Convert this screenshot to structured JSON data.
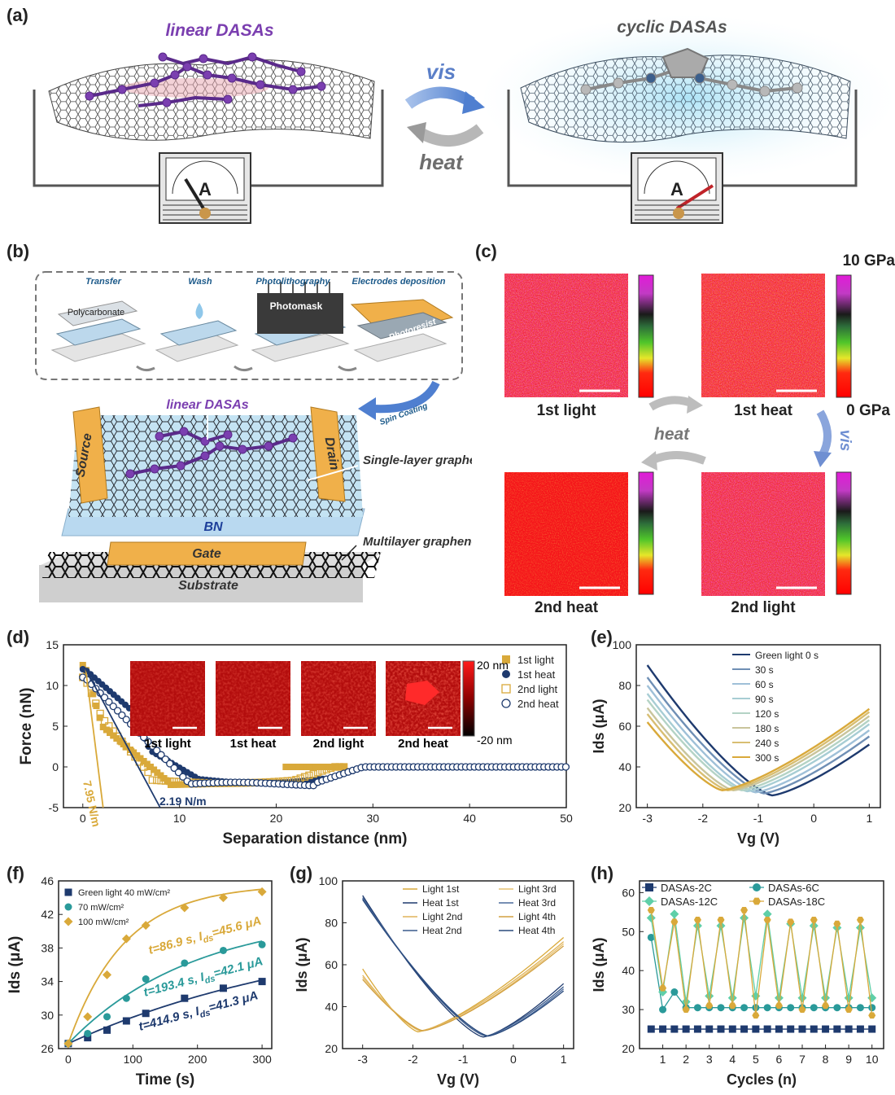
{
  "panel_labels": {
    "a": "(a)",
    "b": "(b)",
    "c": "(c)",
    "d": "(d)",
    "e": "(e)",
    "f": "(f)",
    "g": "(g)",
    "h": "(h)"
  },
  "panel_a": {
    "left_title": "linear DASAs",
    "right_title": "cyclic DASAs",
    "forward": "vis",
    "reverse": "heat",
    "meter_label": "A",
    "colors": {
      "linear": "#7b3fb0",
      "vis": "#5b86cc",
      "heat": "#888888"
    }
  },
  "panel_b": {
    "steps": [
      "Transfer",
      "Wash",
      "Photolithography",
      "Electrodes deposition"
    ],
    "polycarbonate": "Polycarbonate",
    "photomask": "Photomask",
    "photoresist": "Photoresist",
    "spin_coating": "Spin Coating",
    "molecule": "linear DASAs",
    "source": "Source",
    "drain": "Drain",
    "single_layer": "Single-layer graphene",
    "bn": "BN",
    "gate": "Gate",
    "multilayer": "Multilayer graphene",
    "substrate": "Substrate"
  },
  "panel_c": {
    "maps": [
      "1st light",
      "1st heat",
      "2nd heat",
      "2nd light"
    ],
    "scale_max": "10 GPa",
    "scale_min": "0 GPa",
    "arrow_heat": "heat",
    "arrow_vis": "vis"
  },
  "chart_data": [
    {
      "id": "d",
      "type": "scatter",
      "xlabel": "Separation distance (nm)",
      "ylabel": "Force (nN)",
      "xlim": [
        -2,
        50
      ],
      "ylim": [
        -5,
        15
      ],
      "xticks": [
        0,
        10,
        20,
        30,
        40,
        50
      ],
      "yticks": [
        -5,
        0,
        5,
        10,
        15
      ],
      "series": [
        {
          "name": "1st light",
          "color": "#d9a93a",
          "marker": "square-filled"
        },
        {
          "name": "1st heat",
          "color": "#1e3a6e",
          "marker": "circle-filled"
        },
        {
          "name": "2nd light",
          "color": "#d9a93a",
          "marker": "square-open"
        },
        {
          "name": "2nd heat",
          "color": "#1e3a6e",
          "marker": "circle-open"
        }
      ],
      "annotations": [
        "7.95 N/m",
        "2.19 N/m"
      ],
      "inset_labels": [
        "1st light",
        "1st heat",
        "2nd light",
        "2nd heat"
      ],
      "inset_scale": [
        "20 nm",
        "-20 nm"
      ]
    },
    {
      "id": "e",
      "type": "line",
      "xlabel": "Vg (V)",
      "ylabel": "Ids (μA)",
      "xlim": [
        -3.2,
        1.2
      ],
      "ylim": [
        20,
        100
      ],
      "xticks": [
        -3,
        -2,
        -1,
        0,
        1
      ],
      "yticks": [
        20,
        40,
        60,
        80,
        100
      ],
      "series": [
        {
          "name": "Green light 0 s",
          "color": "#1e3a6e",
          "vmin": -0.75,
          "imin": 26,
          "left": 90,
          "right": 51
        },
        {
          "name": "30 s",
          "color": "#6f8fb5",
          "vmin": -0.9,
          "imin": 27,
          "left": 84,
          "right": 55
        },
        {
          "name": "60 s",
          "color": "#9fc0d8",
          "vmin": -1.05,
          "imin": 27.5,
          "left": 80,
          "right": 58
        },
        {
          "name": "90 s",
          "color": "#a7cdd4",
          "vmin": -1.2,
          "imin": 28,
          "left": 76,
          "right": 61
        },
        {
          "name": "120 s",
          "color": "#b4d3c5",
          "vmin": -1.3,
          "imin": 28.5,
          "left": 73,
          "right": 63
        },
        {
          "name": "180 s",
          "color": "#c9c59c",
          "vmin": -1.45,
          "imin": 28.5,
          "left": 69,
          "right": 65
        },
        {
          "name": "240 s",
          "color": "#d8be72",
          "vmin": -1.55,
          "imin": 28.5,
          "left": 66,
          "right": 67
        },
        {
          "name": "300 s",
          "color": "#d9a93a",
          "vmin": -1.65,
          "imin": 28.5,
          "left": 62,
          "right": 68.5
        }
      ]
    },
    {
      "id": "f",
      "type": "scatter",
      "xlabel": "Time (s)",
      "ylabel": "Ids (μA)",
      "xlim": [
        -15,
        315
      ],
      "ylim": [
        26,
        46
      ],
      "xticks": [
        0,
        100,
        200,
        300
      ],
      "yticks": [
        26,
        30,
        34,
        38,
        42,
        46
      ],
      "x": [
        0,
        30,
        60,
        90,
        120,
        180,
        240,
        300
      ],
      "series": [
        {
          "name": "Green light 40 mW/cm²",
          "color": "#1e3a6e",
          "marker": "square",
          "values": [
            26.6,
            27.3,
            28.2,
            29.3,
            30.2,
            32.0,
            33.2,
            34.0
          ],
          "tau": 414.9,
          "imax": 41.3,
          "annotation": "t=414.9 s, I",
          "annotation_tail": "=41.3 μA"
        },
        {
          "name": "70 mW/cm²",
          "color": "#2a9a9a",
          "marker": "circle",
          "values": [
            26.6,
            27.8,
            29.8,
            32.0,
            34.3,
            36.2,
            37.7,
            38.4
          ],
          "tau": 193.4,
          "imax": 42.1,
          "annotation": "t=193.4 s, I",
          "annotation_tail": "=42.1 μA"
        },
        {
          "name": "100 mW/cm²",
          "color": "#d9a93a",
          "marker": "diamond",
          "values": [
            26.6,
            29.8,
            34.8,
            39.1,
            40.7,
            42.8,
            44.0,
            44.7
          ],
          "tau": 86.9,
          "imax": 45.6,
          "annotation": "t=86.9 s, I",
          "annotation_tail": "=45.6 μA"
        }
      ]
    },
    {
      "id": "g",
      "type": "line",
      "xlabel": "Vg (V)",
      "ylabel": "Ids (μA)",
      "xlim": [
        -3.4,
        1.2
      ],
      "ylim": [
        20,
        100
      ],
      "xticks": [
        -3,
        -2,
        -1,
        0,
        1
      ],
      "yticks": [
        20,
        40,
        60,
        80,
        100
      ],
      "series": [
        {
          "name": "Light 1st",
          "color": "#d9a93a",
          "vmin": -1.9,
          "imin": 28,
          "left": 58,
          "right": 73
        },
        {
          "name": "Heat 1st",
          "color": "#1e3a6e",
          "vmin": -0.6,
          "imin": 25.5,
          "left": 93,
          "right": 51
        },
        {
          "name": "Light 2nd",
          "color": "#e0b45a",
          "vmin": -1.85,
          "imin": 28.5,
          "left": 55,
          "right": 71
        },
        {
          "name": "Heat 2nd",
          "color": "#3a5a8c",
          "vmin": -0.55,
          "imin": 26,
          "left": 92,
          "right": 49.5
        },
        {
          "name": "Light 3rd",
          "color": "#e6c070",
          "vmin": -1.8,
          "imin": 28.5,
          "left": 54,
          "right": 70
        },
        {
          "name": "Heat 3rd",
          "color": "#4a6a9c",
          "vmin": -0.5,
          "imin": 26,
          "left": 91.5,
          "right": 48.5
        },
        {
          "name": "Light 4th",
          "color": "#d2a040",
          "vmin": -1.8,
          "imin": 28.5,
          "left": 53,
          "right": 69
        },
        {
          "name": "Heat 4th",
          "color": "#2a4a7c",
          "vmin": -0.5,
          "imin": 26,
          "left": 91,
          "right": 47.5
        }
      ]
    },
    {
      "id": "h",
      "type": "line",
      "xlabel": "Cycles (n)",
      "ylabel": "Ids (μA)",
      "xlim": [
        0,
        10.5
      ],
      "ylim": [
        20,
        63
      ],
      "xticks": [
        1,
        2,
        3,
        4,
        5,
        6,
        7,
        8,
        9,
        10
      ],
      "yticks": [
        20,
        30,
        40,
        50,
        60
      ],
      "x": [
        0.5,
        1,
        1.5,
        2,
        2.5,
        3,
        3.5,
        4,
        4.5,
        5,
        5.5,
        6,
        6.5,
        7,
        7.5,
        8,
        8.5,
        9,
        9.5,
        10
      ],
      "series": [
        {
          "name": "DASAs-2C",
          "color": "#1e3a6e",
          "marker": "square",
          "values": [
            25,
            25,
            25,
            25,
            25,
            25,
            25,
            25,
            25,
            25,
            25,
            25,
            25,
            25,
            25,
            25,
            25,
            25,
            25,
            25
          ]
        },
        {
          "name": "DASAs-6C",
          "color": "#2a9a9a",
          "marker": "circle",
          "values": [
            48.5,
            30,
            34.5,
            30.5,
            30.5,
            30.5,
            30.5,
            30.5,
            30.5,
            30.5,
            30.5,
            30.5,
            30.5,
            30.5,
            30.5,
            30.5,
            30.5,
            30.5,
            30.5,
            30.5
          ]
        },
        {
          "name": "DASAs-12C",
          "color": "#5fcfa8",
          "marker": "diamond",
          "values": [
            53.5,
            34.5,
            54.5,
            32,
            51.5,
            33.5,
            51.5,
            33,
            53.5,
            33.5,
            54.5,
            33,
            52,
            33,
            51.5,
            33,
            51,
            33,
            51,
            33
          ]
        },
        {
          "name": "DASAs-18C",
          "color": "#d9a93a",
          "marker": "hexagon",
          "values": [
            55.5,
            35.5,
            52.5,
            30,
            53,
            31,
            53,
            31,
            55.5,
            28.5,
            53,
            31,
            52.5,
            30,
            53,
            31,
            52,
            30,
            53,
            28.5
          ]
        }
      ]
    }
  ]
}
